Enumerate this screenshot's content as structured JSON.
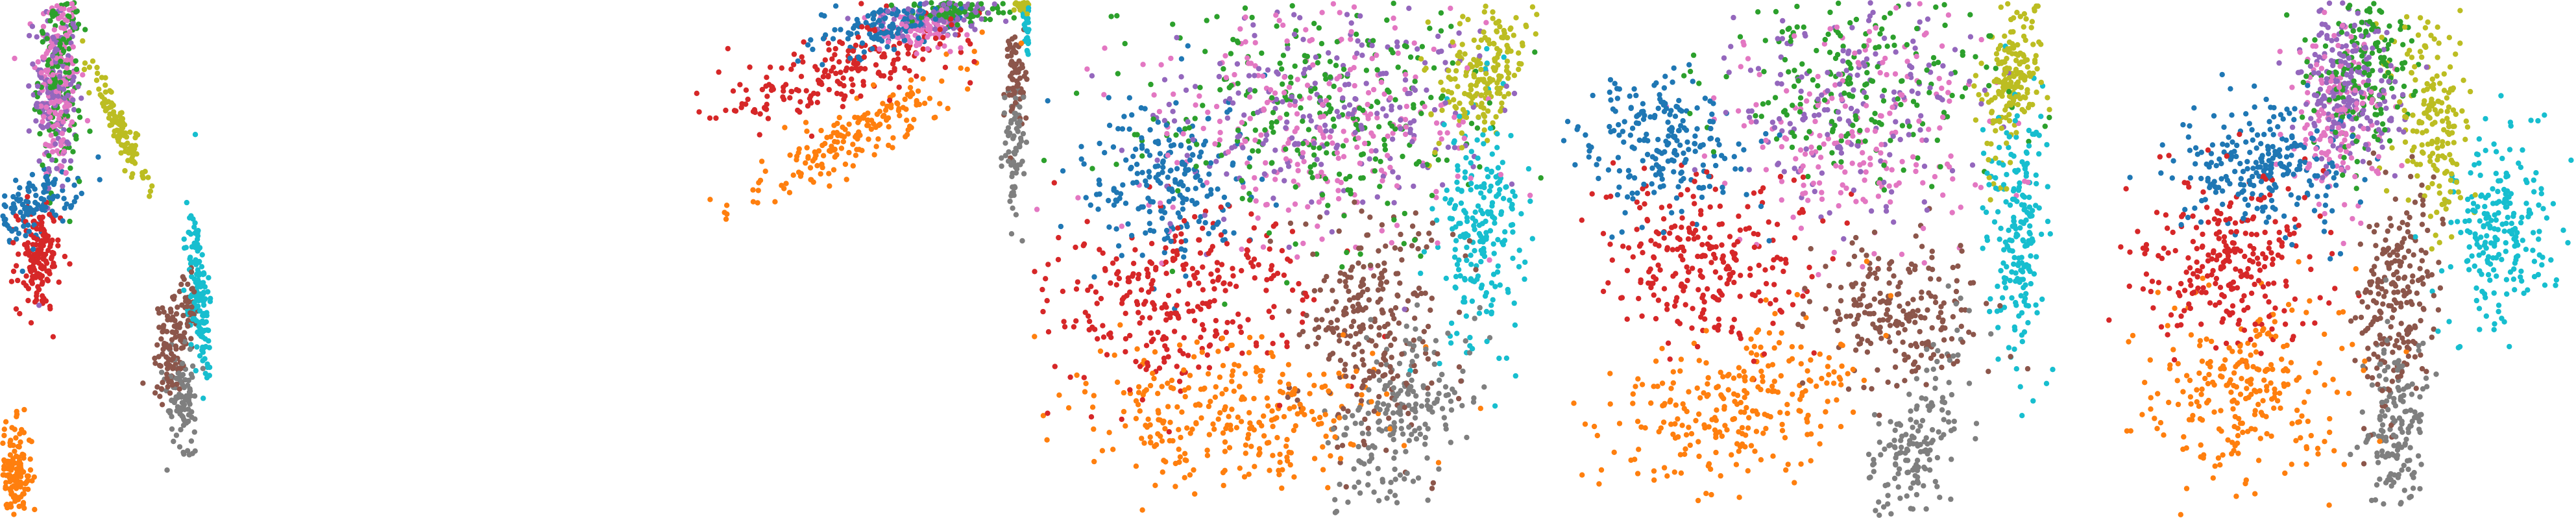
{
  "figure": {
    "panel_count": 5,
    "axes_visible": false,
    "background": "#ffffff"
  },
  "palette": {
    "blue": "#1f77b4",
    "orange": "#ff7f0e",
    "green": "#2ca02c",
    "red": "#d62728",
    "purple": "#9467bd",
    "brown": "#8c564b",
    "pink": "#e377c2",
    "gray": "#7f7f7f",
    "olive": "#bcbd22",
    "cyan": "#17becf"
  },
  "chart_data": [
    {
      "type": "scatter",
      "panel": 1,
      "title": "",
      "xlabel": "",
      "ylabel": "",
      "grid": false,
      "legend": "none",
      "xlim": [
        0,
        100
      ],
      "ylim": [
        0,
        100
      ],
      "clusters": [
        {
          "color": "pink",
          "cx": 27,
          "cy": 84,
          "sx": 5,
          "sy": 10,
          "rot": 0,
          "n": 170
        },
        {
          "color": "purple",
          "cx": 26,
          "cy": 83,
          "sx": 5,
          "sy": 10,
          "rot": 0,
          "n": 150
        },
        {
          "color": "green",
          "cx": 28,
          "cy": 86,
          "sx": 5,
          "sy": 10,
          "rot": 0,
          "n": 170
        },
        {
          "color": "blue",
          "cx": 14,
          "cy": 60,
          "sx": 11,
          "sy": 3,
          "rot": 10,
          "n": 140
        },
        {
          "color": "red",
          "cx": 18,
          "cy": 50,
          "sx": 5,
          "sy": 5,
          "rot": 0,
          "n": 150
        },
        {
          "color": "olive",
          "cx": 55,
          "cy": 76,
          "sx": 9,
          "sy": 1.8,
          "rot": -40,
          "n": 110
        },
        {
          "color": "cyan",
          "cx": 93,
          "cy": 43,
          "sx": 2.2,
          "sy": 9,
          "rot": 10,
          "n": 150
        },
        {
          "color": "brown",
          "cx": 83,
          "cy": 35,
          "sx": 4,
          "sy": 7,
          "rot": -35,
          "n": 140
        },
        {
          "color": "gray",
          "cx": 85,
          "cy": 23,
          "sx": 3.5,
          "sy": 5,
          "rot": 20,
          "n": 100
        },
        {
          "color": "orange",
          "cx": 7,
          "cy": 8,
          "sx": 4,
          "sy": 5,
          "rot": 0,
          "n": 160
        }
      ]
    },
    {
      "type": "scatter",
      "panel": 2,
      "title": "",
      "xlabel": "",
      "ylabel": "",
      "grid": false,
      "legend": "none",
      "xlim": [
        0,
        100
      ],
      "ylim": [
        0,
        100
      ],
      "clusters": [
        {
          "color": "blue",
          "cx": 65,
          "cy": 95,
          "sx": 9,
          "sy": 2.5,
          "rot": 10,
          "n": 150
        },
        {
          "color": "purple",
          "cx": 77,
          "cy": 97,
          "sx": 7,
          "sy": 1.8,
          "rot": 0,
          "n": 110
        },
        {
          "color": "green",
          "cx": 82,
          "cy": 98,
          "sx": 6,
          "sy": 1.5,
          "rot": 0,
          "n": 90
        },
        {
          "color": "pink",
          "cx": 72,
          "cy": 94,
          "sx": 6,
          "sy": 2,
          "rot": 0,
          "n": 80
        },
        {
          "color": "red",
          "cx": 52,
          "cy": 86,
          "sx": 16,
          "sy": 3.5,
          "rot": 14,
          "n": 200
        },
        {
          "color": "orange",
          "cx": 57,
          "cy": 74,
          "sx": 14,
          "sy": 3,
          "rot": 25,
          "n": 180
        },
        {
          "color": "cyan",
          "cx": 99,
          "cy": 95,
          "sx": 0.6,
          "sy": 3,
          "rot": 0,
          "n": 60
        },
        {
          "color": "olive",
          "cx": 98,
          "cy": 99,
          "sx": 1,
          "sy": 0.6,
          "rot": 0,
          "n": 30
        },
        {
          "color": "brown",
          "cx": 96,
          "cy": 85,
          "sx": 1.2,
          "sy": 6,
          "rot": 0,
          "n": 70
        },
        {
          "color": "gray",
          "cx": 96,
          "cy": 70,
          "sx": 1.2,
          "sy": 7,
          "rot": 0,
          "n": 70
        }
      ]
    },
    {
      "type": "scatter",
      "panel": 3,
      "title": "",
      "xlabel": "",
      "ylabel": "",
      "grid": false,
      "legend": "none",
      "xlim": [
        0,
        100
      ],
      "ylim": [
        0,
        100
      ],
      "clusters": [
        {
          "color": "green",
          "cx": 56,
          "cy": 78,
          "sx": 17,
          "sy": 11,
          "rot": 0,
          "n": 280
        },
        {
          "color": "pink",
          "cx": 56,
          "cy": 76,
          "sx": 17,
          "sy": 11,
          "rot": 0,
          "n": 260
        },
        {
          "color": "purple",
          "cx": 57,
          "cy": 80,
          "sx": 17,
          "sy": 11,
          "rot": 0,
          "n": 240
        },
        {
          "color": "blue",
          "cx": 26,
          "cy": 65,
          "sx": 8,
          "sy": 8,
          "rot": 0,
          "n": 220
        },
        {
          "color": "red",
          "cx": 29,
          "cy": 43,
          "sx": 13,
          "sy": 9,
          "rot": 0,
          "n": 300
        },
        {
          "color": "orange",
          "cx": 38,
          "cy": 20,
          "sx": 15,
          "sy": 7,
          "rot": 0,
          "n": 300
        },
        {
          "color": "brown",
          "cx": 66,
          "cy": 38,
          "sx": 8,
          "sy": 10,
          "rot": 0,
          "n": 260
        },
        {
          "color": "gray",
          "cx": 72,
          "cy": 20,
          "sx": 6,
          "sy": 9,
          "rot": -20,
          "n": 200
        },
        {
          "color": "cyan",
          "cx": 88,
          "cy": 55,
          "sx": 4,
          "sy": 12,
          "rot": 0,
          "n": 220
        },
        {
          "color": "olive",
          "cx": 88,
          "cy": 85,
          "sx": 4,
          "sy": 7,
          "rot": -20,
          "n": 180
        }
      ]
    },
    {
      "type": "scatter",
      "panel": 4,
      "title": "",
      "xlabel": "",
      "ylabel": "",
      "grid": false,
      "legend": "none",
      "xlim": [
        0,
        100
      ],
      "ylim": [
        0,
        100
      ],
      "clusters": [
        {
          "color": "pink",
          "cx": 62,
          "cy": 75,
          "sx": 14,
          "sy": 12,
          "rot": 0,
          "n": 200
        },
        {
          "color": "green",
          "cx": 62,
          "cy": 85,
          "sx": 14,
          "sy": 9,
          "rot": 0,
          "n": 200
        },
        {
          "color": "purple",
          "cx": 58,
          "cy": 80,
          "sx": 13,
          "sy": 10,
          "rot": 0,
          "n": 180
        },
        {
          "color": "blue",
          "cx": 22,
          "cy": 72,
          "sx": 9,
          "sy": 7,
          "rot": 0,
          "n": 220
        },
        {
          "color": "red",
          "cx": 30,
          "cy": 50,
          "sx": 10,
          "sy": 8,
          "rot": 0,
          "n": 260
        },
        {
          "color": "orange",
          "cx": 35,
          "cy": 22,
          "sx": 14,
          "sy": 7,
          "rot": 15,
          "n": 260
        },
        {
          "color": "brown",
          "cx": 68,
          "cy": 40,
          "sx": 8,
          "sy": 7,
          "rot": 0,
          "n": 220
        },
        {
          "color": "gray",
          "cx": 72,
          "cy": 15,
          "sx": 4,
          "sy": 10,
          "rot": -20,
          "n": 170
        },
        {
          "color": "cyan",
          "cx": 92,
          "cy": 55,
          "sx": 3,
          "sy": 12,
          "rot": 0,
          "n": 200
        },
        {
          "color": "olive",
          "cx": 91,
          "cy": 85,
          "sx": 3,
          "sy": 8,
          "rot": -10,
          "n": 180
        }
      ]
    },
    {
      "type": "scatter",
      "panel": 5,
      "title": "",
      "xlabel": "",
      "ylabel": "",
      "grid": false,
      "legend": "none",
      "xlim": [
        0,
        100
      ],
      "ylim": [
        0,
        100
      ],
      "clusters": [
        {
          "color": "purple",
          "cx": 53,
          "cy": 84,
          "sx": 5,
          "sy": 8,
          "rot": 0,
          "n": 220
        },
        {
          "color": "green",
          "cx": 56,
          "cy": 86,
          "sx": 5,
          "sy": 8,
          "rot": 0,
          "n": 180
        },
        {
          "color": "pink",
          "cx": 51,
          "cy": 78,
          "sx": 5,
          "sy": 8,
          "rot": 0,
          "n": 160
        },
        {
          "color": "blue",
          "cx": 36,
          "cy": 68,
          "sx": 9,
          "sy": 6,
          "rot": 0,
          "n": 240
        },
        {
          "color": "red",
          "cx": 29,
          "cy": 50,
          "sx": 9,
          "sy": 8,
          "rot": 0,
          "n": 260
        },
        {
          "color": "orange",
          "cx": 32,
          "cy": 25,
          "sx": 11,
          "sy": 9,
          "rot": 30,
          "n": 260
        },
        {
          "color": "olive",
          "cx": 70,
          "cy": 78,
          "sx": 4,
          "sy": 11,
          "rot": 10,
          "n": 180
        },
        {
          "color": "cyan",
          "cx": 84,
          "cy": 56,
          "sx": 5,
          "sy": 9,
          "rot": 0,
          "n": 220
        },
        {
          "color": "brown",
          "cx": 63,
          "cy": 42,
          "sx": 4,
          "sy": 11,
          "rot": -5,
          "n": 220
        },
        {
          "color": "gray",
          "cx": 63,
          "cy": 18,
          "sx": 3,
          "sy": 10,
          "rot": 0,
          "n": 170
        }
      ]
    }
  ]
}
